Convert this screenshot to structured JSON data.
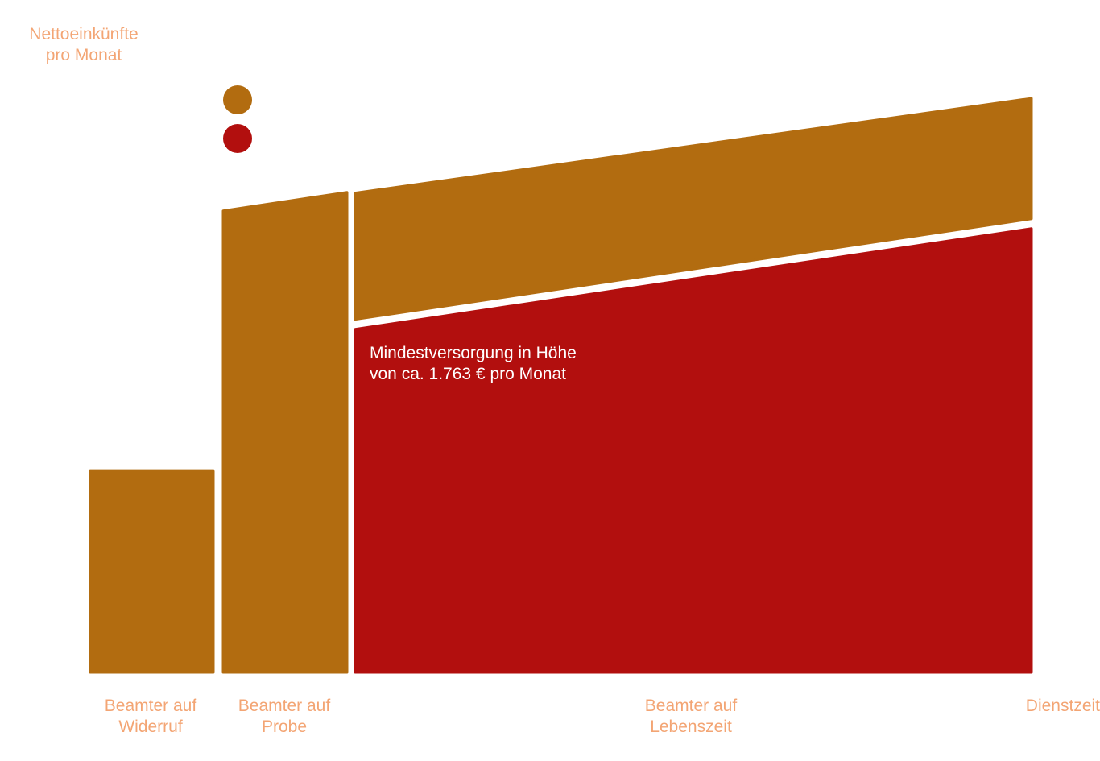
{
  "colors": {
    "income": "#b26c10",
    "minimum_pension": "#b20f0e",
    "label": "#f3a574"
  },
  "chart_data": {
    "type": "area",
    "ylabel": "Nettoeinkünfte\npro Monat",
    "xlabel": "Dienstzeit",
    "categories": [
      "Beamter auf\nWiderruf",
      "Beamter auf\nProbe",
      "Beamter auf\nLebenszeit"
    ],
    "annotation": "Mindestversorgung in Höhe\nvon ca. 1.763 € pro Monat",
    "legend_placement": "top-left",
    "grid": false,
    "ylim": [
      0,
      100
    ],
    "series": [
      {
        "key": "income",
        "color": "#b26c10",
        "values": [
          34,
          78,
          [
            81,
            97
          ]
        ]
      },
      {
        "key": "minimum_pension",
        "color": "#b20f0e",
        "values": [
          0,
          0,
          [
            58,
            75
          ]
        ]
      }
    ]
  }
}
